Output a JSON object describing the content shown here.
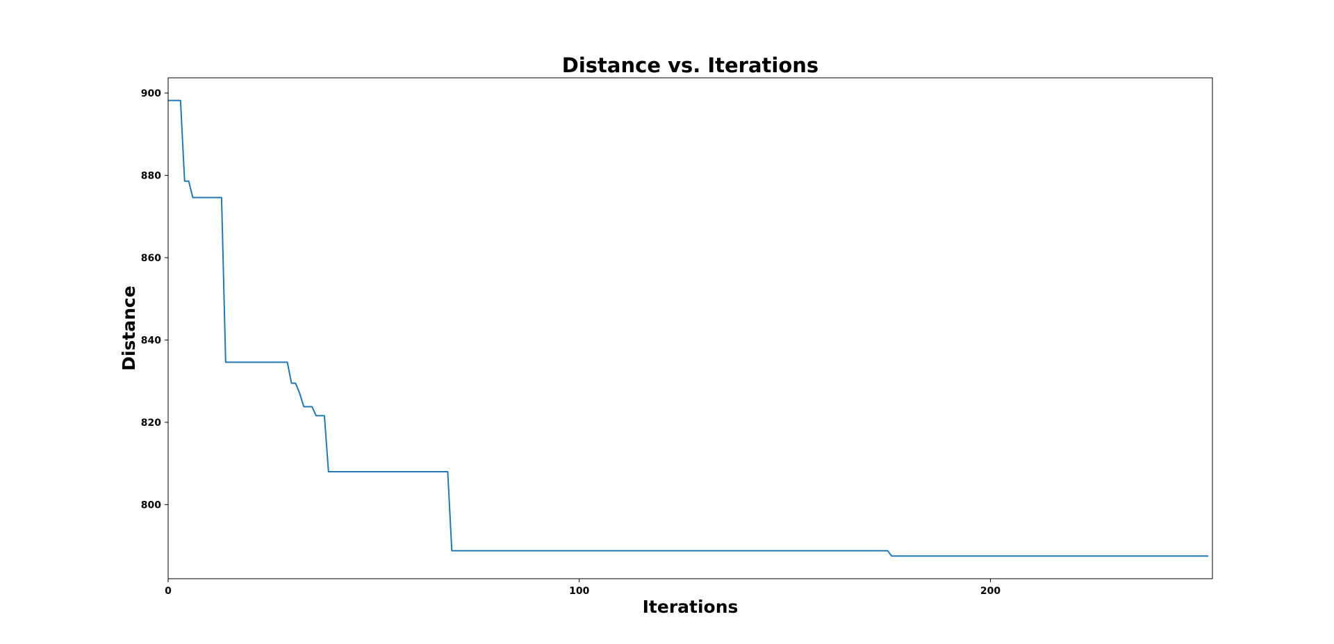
{
  "chart_data": {
    "type": "line",
    "title": "Distance vs. Iterations",
    "xlabel": "Iterations",
    "ylabel": "Distance",
    "xlim": [
      0,
      254
    ],
    "ylim": [
      782,
      903.7
    ],
    "xticks": [
      0,
      100,
      200
    ],
    "yticks": [
      800,
      820,
      840,
      860,
      880,
      900
    ],
    "grid": false,
    "line_color": "#1f77b4",
    "series": [
      {
        "x": [
          0,
          3,
          4,
          5,
          6,
          13,
          14,
          29,
          30,
          31,
          32,
          33,
          35,
          36,
          38,
          39,
          68,
          69,
          175,
          176,
          253
        ],
        "y": [
          898.2,
          898.2,
          878.6,
          878.6,
          874.6,
          874.6,
          834.6,
          834.6,
          829.5,
          829.5,
          827.0,
          823.8,
          823.8,
          821.6,
          821.6,
          808.0,
          808.0,
          788.8,
          788.8,
          787.5,
          787.5
        ]
      }
    ]
  }
}
